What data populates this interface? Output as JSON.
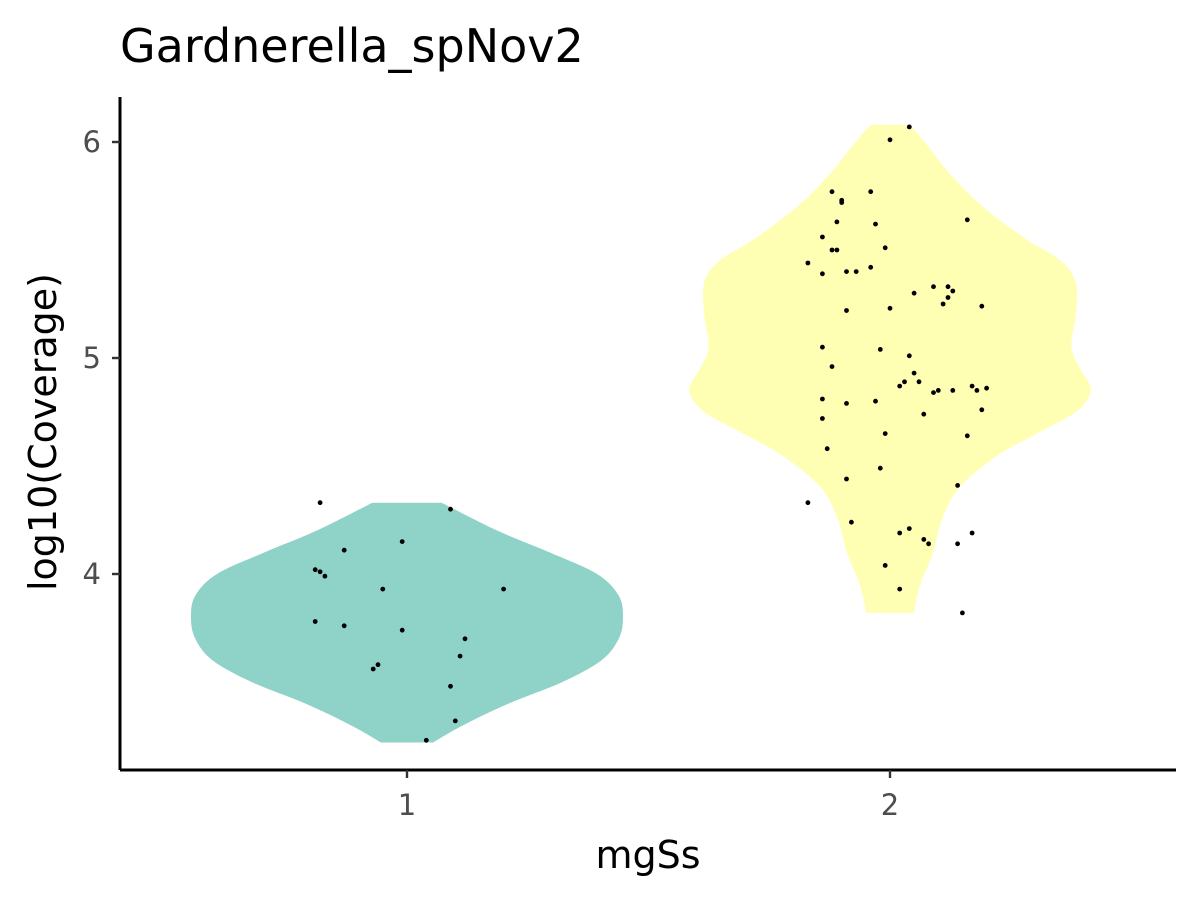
{
  "chart_data": {
    "type": "violin",
    "title": "Gardnerella_spNov2",
    "xlabel": "mgSs",
    "ylabel": "log10(Coverage)",
    "x_categories": [
      "1",
      "2"
    ],
    "y_ticks": [
      4,
      5,
      6
    ],
    "ylim": [
      3.1,
      6.2
    ],
    "grid": false,
    "legend": "none",
    "groups": [
      {
        "category": "1",
        "color": "#8fd3c8",
        "density_profile": [
          [
            3.22,
            0.12
          ],
          [
            3.3,
            0.26
          ],
          [
            3.4,
            0.47
          ],
          [
            3.5,
            0.72
          ],
          [
            3.6,
            0.9
          ],
          [
            3.7,
            0.98
          ],
          [
            3.8,
            1.0
          ],
          [
            3.9,
            0.98
          ],
          [
            4.0,
            0.88
          ],
          [
            4.1,
            0.66
          ],
          [
            4.2,
            0.42
          ],
          [
            4.33,
            0.16
          ]
        ],
        "points": [
          [
            0.82,
            4.33
          ],
          [
            0.87,
            4.11
          ],
          [
            0.82,
            4.01
          ],
          [
            0.83,
            3.99
          ],
          [
            0.81,
            4.02
          ],
          [
            1.09,
            4.3
          ],
          [
            0.99,
            4.15
          ],
          [
            0.95,
            3.93
          ],
          [
            1.2,
            3.93
          ],
          [
            0.81,
            3.78
          ],
          [
            0.87,
            3.76
          ],
          [
            0.99,
            3.74
          ],
          [
            1.12,
            3.7
          ],
          [
            1.11,
            3.62
          ],
          [
            0.94,
            3.58
          ],
          [
            0.93,
            3.56
          ],
          [
            1.09,
            3.48
          ],
          [
            1.1,
            3.32
          ],
          [
            1.04,
            3.23
          ]
        ]
      },
      {
        "category": "2",
        "color": "#ffffb3",
        "density_profile": [
          [
            3.82,
            0.11
          ],
          [
            3.95,
            0.14
          ],
          [
            4.1,
            0.2
          ],
          [
            4.25,
            0.24
          ],
          [
            4.4,
            0.32
          ],
          [
            4.55,
            0.5
          ],
          [
            4.65,
            0.68
          ],
          [
            4.75,
            0.86
          ],
          [
            4.85,
            0.93
          ],
          [
            4.95,
            0.88
          ],
          [
            5.05,
            0.84
          ],
          [
            5.2,
            0.86
          ],
          [
            5.35,
            0.86
          ],
          [
            5.45,
            0.79
          ],
          [
            5.55,
            0.63
          ],
          [
            5.7,
            0.43
          ],
          [
            5.85,
            0.28
          ],
          [
            6.0,
            0.16
          ],
          [
            6.08,
            0.09
          ]
        ],
        "points": [
          [
            2.04,
            6.07
          ],
          [
            2.0,
            6.01
          ],
          [
            1.88,
            5.77
          ],
          [
            1.96,
            5.77
          ],
          [
            1.9,
            5.73
          ],
          [
            1.9,
            5.72
          ],
          [
            2.16,
            5.64
          ],
          [
            1.89,
            5.63
          ],
          [
            1.97,
            5.62
          ],
          [
            1.86,
            5.56
          ],
          [
            1.88,
            5.5
          ],
          [
            1.89,
            5.5
          ],
          [
            1.99,
            5.51
          ],
          [
            1.83,
            5.44
          ],
          [
            1.96,
            5.42
          ],
          [
            1.91,
            5.4
          ],
          [
            1.93,
            5.4
          ],
          [
            1.86,
            5.39
          ],
          [
            2.09,
            5.33
          ],
          [
            2.12,
            5.33
          ],
          [
            2.05,
            5.3
          ],
          [
            2.13,
            5.31
          ],
          [
            2.12,
            5.28
          ],
          [
            2.11,
            5.25
          ],
          [
            2.0,
            5.23
          ],
          [
            1.91,
            5.22
          ],
          [
            2.19,
            5.24
          ],
          [
            1.86,
            5.05
          ],
          [
            1.98,
            5.04
          ],
          [
            2.04,
            5.01
          ],
          [
            1.88,
            4.96
          ],
          [
            2.05,
            4.93
          ],
          [
            2.06,
            4.89
          ],
          [
            2.03,
            4.89
          ],
          [
            2.02,
            4.87
          ],
          [
            2.17,
            4.87
          ],
          [
            2.2,
            4.86
          ],
          [
            2.18,
            4.85
          ],
          [
            2.13,
            4.85
          ],
          [
            2.1,
            4.85
          ],
          [
            2.09,
            4.84
          ],
          [
            1.86,
            4.81
          ],
          [
            1.97,
            4.8
          ],
          [
            1.91,
            4.79
          ],
          [
            2.19,
            4.76
          ],
          [
            2.07,
            4.74
          ],
          [
            1.86,
            4.72
          ],
          [
            1.99,
            4.65
          ],
          [
            2.16,
            4.64
          ],
          [
            1.87,
            4.58
          ],
          [
            1.98,
            4.49
          ],
          [
            1.91,
            4.44
          ],
          [
            2.14,
            4.41
          ],
          [
            1.83,
            4.33
          ],
          [
            1.92,
            4.24
          ],
          [
            2.04,
            4.21
          ],
          [
            2.02,
            4.19
          ],
          [
            2.17,
            4.19
          ],
          [
            2.07,
            4.16
          ],
          [
            2.08,
            4.14
          ],
          [
            2.14,
            4.14
          ],
          [
            1.99,
            4.04
          ],
          [
            2.02,
            3.93
          ],
          [
            2.15,
            3.82
          ]
        ]
      }
    ]
  }
}
